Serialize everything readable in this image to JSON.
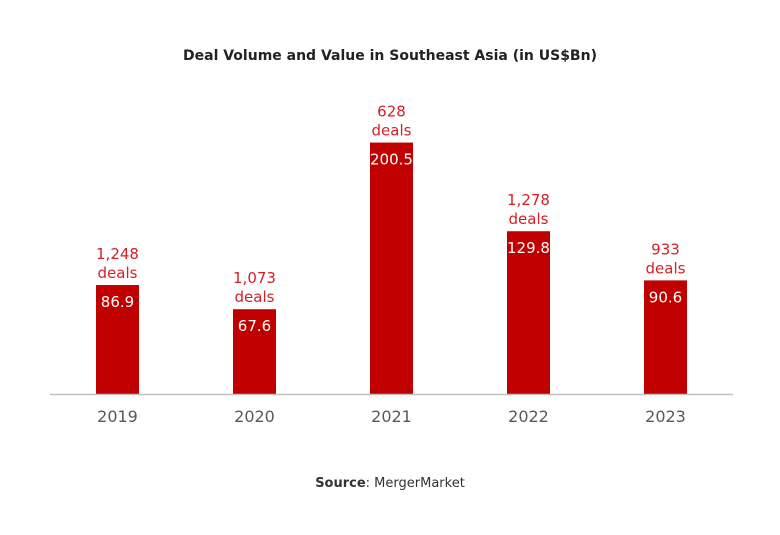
{
  "chart_data": {
    "type": "bar",
    "title": "Deal Volume and Value in Southeast Asia (in US$Bn)",
    "categories": [
      "2019",
      "2020",
      "2021",
      "2022",
      "2023"
    ],
    "values": [
      86.9,
      67.6,
      200.5,
      129.8,
      90.6
    ],
    "value_labels": [
      "86.9",
      "67.6",
      "200.5",
      "129.8",
      "90.6"
    ],
    "deal_counts": [
      "1,248",
      "1,073",
      "628",
      "1,278",
      "933"
    ],
    "deal_suffix": "deals",
    "xlabel": "",
    "ylabel": "",
    "grid": false,
    "colors": {
      "bar": "#c00000",
      "annotation": "#d42027",
      "value_label": "#ffffff",
      "axis": "#bfbfbf",
      "tick_label": "#595959"
    }
  },
  "source": {
    "label": "Source",
    "text": ": MergerMarket"
  }
}
